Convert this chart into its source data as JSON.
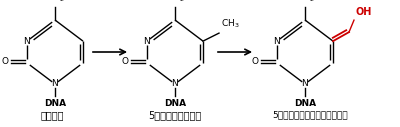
{
  "background": "#ffffff",
  "label1": "シトシン",
  "label2": "5－メチルシトシン",
  "label3": "5－ヒドロキシメチルシトシン",
  "black": "#000000",
  "red": "#cc0000"
}
